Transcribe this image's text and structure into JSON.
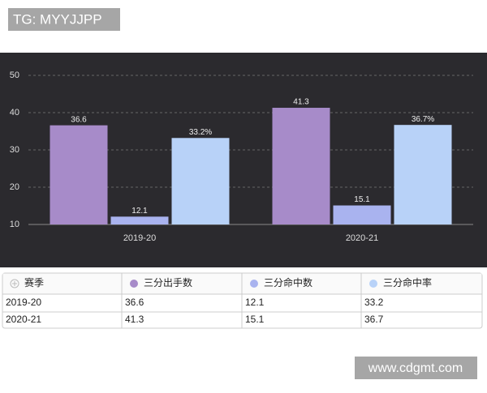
{
  "watermark": "TG: MYYJJPP",
  "chart_data": {
    "type": "bar",
    "categories": [
      "2019-20",
      "2020-21"
    ],
    "series": [
      {
        "name": "三分出手数",
        "color": "#a78bc9",
        "values": [
          36.6,
          41.3
        ]
      },
      {
        "name": "三分命中数",
        "color": "#a9b3ef",
        "values": [
          12.1,
          15.1
        ]
      },
      {
        "name": "三分命中率",
        "color": "#b8d2f8",
        "values": [
          33.2,
          36.7
        ],
        "value_labels": [
          "33.2%",
          "36.7%"
        ]
      }
    ],
    "ylim": [
      10,
      50
    ],
    "yticks": [
      10,
      20,
      30,
      40,
      50
    ],
    "grid": true
  },
  "table": {
    "first_header": "赛季"
  },
  "footer_watermark": "www.cdgmt.com"
}
